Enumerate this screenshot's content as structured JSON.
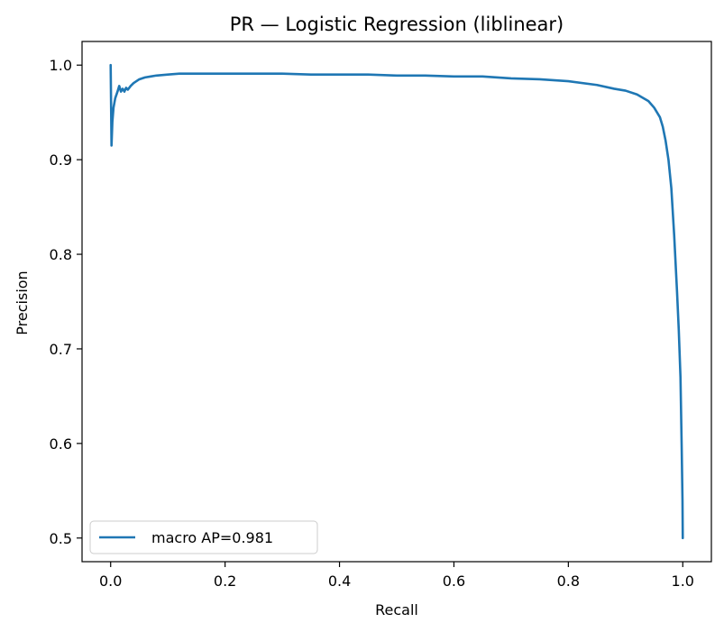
{
  "chart_data": {
    "type": "line",
    "title": "PR — Logistic Regression (liblinear)",
    "xlabel": "Recall",
    "ylabel": "Precision",
    "xlim": [
      -0.05,
      1.05
    ],
    "ylim": [
      0.475,
      1.025
    ],
    "xticks": [
      0.0,
      0.2,
      0.4,
      0.6,
      0.8,
      1.0
    ],
    "xtick_labels": [
      "0.0",
      "0.2",
      "0.4",
      "0.6",
      "0.8",
      "1.0"
    ],
    "yticks": [
      0.5,
      0.6,
      0.7,
      0.8,
      0.9,
      1.0
    ],
    "ytick_labels": [
      "0.5",
      "0.6",
      "0.7",
      "0.8",
      "0.9",
      "1.0"
    ],
    "grid": false,
    "legend_position": "lower-left",
    "series": [
      {
        "name": "macro AP=0.981",
        "color": "#1f77b4",
        "x": [
          0.0,
          0.0015,
          0.003,
          0.005,
          0.008,
          0.012,
          0.015,
          0.018,
          0.021,
          0.024,
          0.027,
          0.03,
          0.035,
          0.04,
          0.05,
          0.06,
          0.07,
          0.08,
          0.1,
          0.12,
          0.14,
          0.16,
          0.2,
          0.25,
          0.3,
          0.35,
          0.4,
          0.45,
          0.5,
          0.55,
          0.6,
          0.65,
          0.7,
          0.75,
          0.8,
          0.85,
          0.88,
          0.9,
          0.92,
          0.94,
          0.95,
          0.96,
          0.965,
          0.97,
          0.975,
          0.98,
          0.985,
          0.99,
          0.993,
          0.996,
          0.998,
          0.9995,
          1.0
        ],
        "y": [
          1.0,
          0.915,
          0.94,
          0.955,
          0.965,
          0.972,
          0.978,
          0.972,
          0.975,
          0.972,
          0.976,
          0.974,
          0.978,
          0.981,
          0.985,
          0.987,
          0.988,
          0.989,
          0.99,
          0.991,
          0.991,
          0.991,
          0.991,
          0.991,
          0.991,
          0.99,
          0.99,
          0.99,
          0.989,
          0.989,
          0.988,
          0.988,
          0.986,
          0.985,
          0.983,
          0.979,
          0.975,
          0.973,
          0.969,
          0.962,
          0.955,
          0.945,
          0.935,
          0.92,
          0.9,
          0.87,
          0.82,
          0.76,
          0.72,
          0.67,
          0.6,
          0.54,
          0.5
        ]
      }
    ]
  }
}
